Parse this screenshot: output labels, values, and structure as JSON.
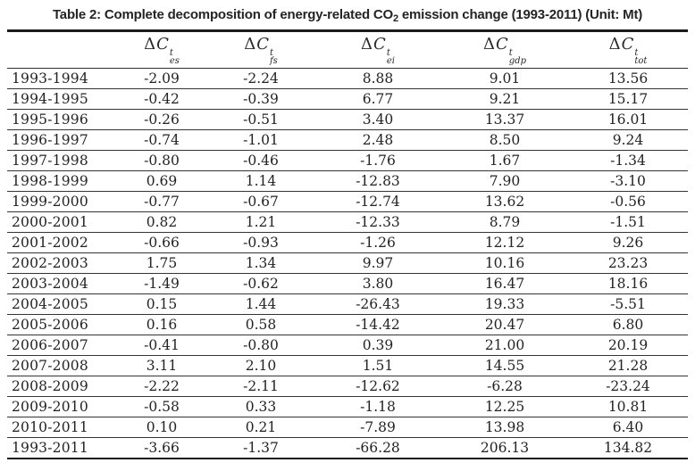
{
  "title": {
    "prefix": "Table 2: Complete decomposition of energy-related CO",
    "sub": "2",
    "suffix": " emission change (1993-2011) (Unit: Mt)"
  },
  "table": {
    "corner_label": "",
    "columns": [
      {
        "delta": "Δ",
        "var": "C",
        "sup": "t",
        "sub": "es"
      },
      {
        "delta": "Δ",
        "var": "C",
        "sup": "t",
        "sub": "fs"
      },
      {
        "delta": "Δ",
        "var": "C",
        "sup": "t",
        "sub": "ei"
      },
      {
        "delta": "Δ",
        "var": "C",
        "sup": "t",
        "sub": "gdp"
      },
      {
        "delta": "Δ",
        "var": "C",
        "sup": "t",
        "sub": "tot"
      }
    ],
    "rows": [
      {
        "period": "1993-1994",
        "values": [
          "-2.09",
          "-2.24",
          "8.88",
          "9.01",
          "13.56"
        ]
      },
      {
        "period": "1994-1995",
        "values": [
          "-0.42",
          "-0.39",
          "6.77",
          "9.21",
          "15.17"
        ]
      },
      {
        "period": "1995-1996",
        "values": [
          "-0.26",
          "-0.51",
          "3.40",
          "13.37",
          "16.01"
        ]
      },
      {
        "period": "1996-1997",
        "values": [
          "-0.74",
          "-1.01",
          "2.48",
          "8.50",
          "9.24"
        ]
      },
      {
        "period": "1997-1998",
        "values": [
          "-0.80",
          "-0.46",
          "-1.76",
          "1.67",
          "-1.34"
        ]
      },
      {
        "period": "1998-1999",
        "values": [
          "0.69",
          "1.14",
          "-12.83",
          "7.90",
          "-3.10"
        ]
      },
      {
        "period": "1999-2000",
        "values": [
          "-0.77",
          "-0.67",
          "-12.74",
          "13.62",
          "-0.56"
        ]
      },
      {
        "period": "2000-2001",
        "values": [
          "0.82",
          "1.21",
          "-12.33",
          "8.79",
          "-1.51"
        ]
      },
      {
        "period": "2001-2002",
        "values": [
          "-0.66",
          "-0.93",
          "-1.26",
          "12.12",
          "9.26"
        ]
      },
      {
        "period": "2002-2003",
        "values": [
          "1.75",
          "1.34",
          "9.97",
          "10.16",
          "23.23"
        ]
      },
      {
        "period": "2003-2004",
        "values": [
          "-1.49",
          "-0.62",
          "3.80",
          "16.47",
          "18.16"
        ]
      },
      {
        "period": "2004-2005",
        "values": [
          "0.15",
          "1.44",
          "-26.43",
          "19.33",
          "-5.51"
        ]
      },
      {
        "period": "2005-2006",
        "values": [
          "0.16",
          "0.58",
          "-14.42",
          "20.47",
          "6.80"
        ]
      },
      {
        "period": "2006-2007",
        "values": [
          "-0.41",
          "-0.80",
          "0.39",
          "21.00",
          "20.19"
        ]
      },
      {
        "period": "2007-2008",
        "values": [
          "3.11",
          "2.10",
          "1.51",
          "14.55",
          "21.28"
        ]
      },
      {
        "period": "2008-2009",
        "values": [
          "-2.22",
          "-2.11",
          "-12.62",
          "-6.28",
          "-23.24"
        ]
      },
      {
        "period": "2009-2010",
        "values": [
          "-0.58",
          "0.33",
          "-1.18",
          "12.25",
          "10.81"
        ]
      },
      {
        "period": "2010-2011",
        "values": [
          "0.10",
          "0.21",
          "-7.89",
          "13.98",
          "6.40"
        ]
      },
      {
        "period": "1993-2011",
        "values": [
          "-3.66",
          "-1.37",
          "-66.28",
          "206.13",
          "134.82"
        ]
      }
    ]
  }
}
